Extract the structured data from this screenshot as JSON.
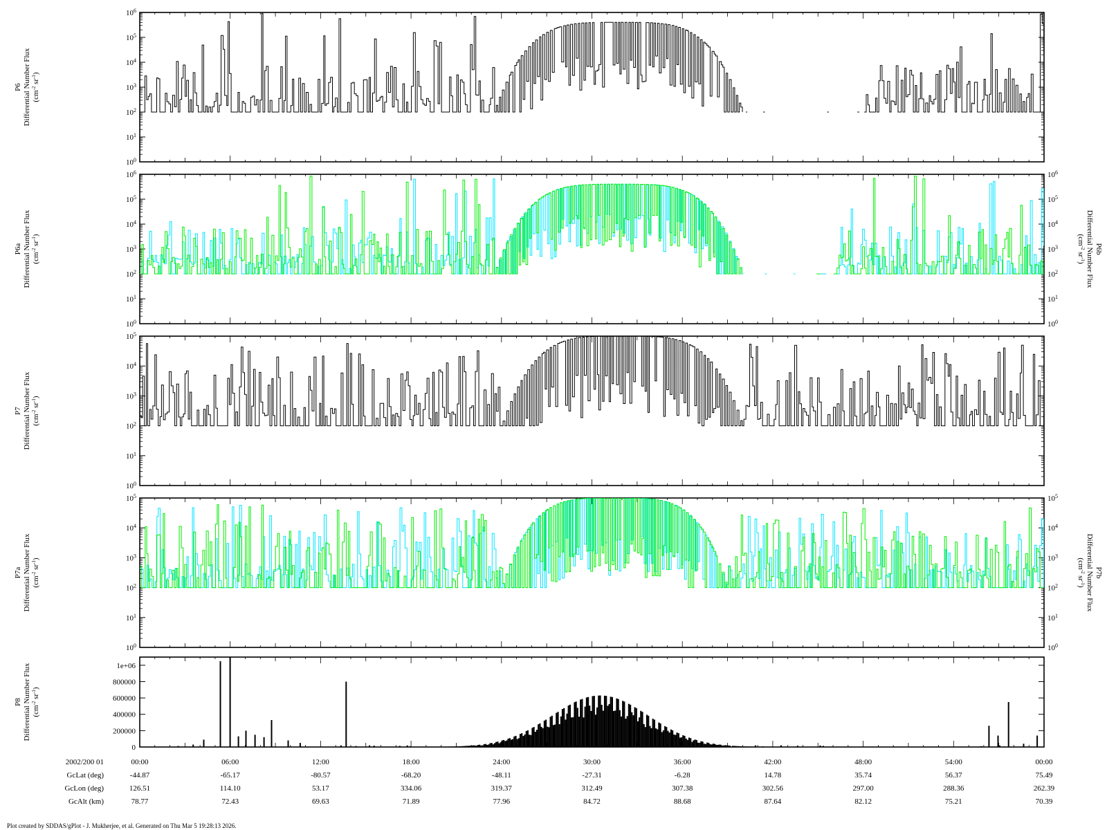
{
  "footer": "Plot created by SDDAS/gPlot - J. Mukherjee, et al.  Generated on Thu Mar 5 19:28:13 2026.",
  "colors": {
    "axis": "#000000",
    "p_black": "#000000",
    "p_cyan": "#00e5ff",
    "p_green": "#00ee00"
  },
  "chart_data": [
    {
      "type": "line",
      "name": "P6",
      "ylabel": [
        "P6",
        "Differential Number Flux",
        "(cm-2 sr-1)"
      ],
      "right_ylabel": "",
      "yscale": "log",
      "ylim": [
        1,
        1000000
      ],
      "yticks": [
        "10^0",
        "10^1",
        "10^2",
        "10^3",
        "10^4",
        "10^5",
        "10^6"
      ],
      "series": [
        {
          "color": "black"
        }
      ],
      "profile": {
        "hump_peak": 400000,
        "hump_start": 23.5,
        "hump_end": 40,
        "gap": [
          40,
          48
        ],
        "max_spike": 1000000
      }
    },
    {
      "type": "line",
      "name": "P6a/P6b",
      "ylabel": [
        "P6a",
        "Differential Number Flux",
        "(cm-2 sr-1)"
      ],
      "right_ylabel": [
        "P6b",
        "Differential Number Flux",
        "(cm-2 sr-1)"
      ],
      "yscale": "log",
      "ylim": [
        1,
        1000000
      ],
      "yticks": [
        "10^0",
        "10^1",
        "10^2",
        "10^3",
        "10^4",
        "10^5",
        "10^6"
      ],
      "series": [
        {
          "color": "cyan"
        },
        {
          "color": "green"
        }
      ],
      "profile": {
        "hump_peak": 400000,
        "hump_start": 23.5,
        "hump_end": 40,
        "gap": [
          40,
          46
        ],
        "max_spike": 1000000
      }
    },
    {
      "type": "line",
      "name": "P7",
      "ylabel": [
        "P7",
        "Differential Number Flux",
        "(cm-2 sr-1)"
      ],
      "right_ylabel": "",
      "yscale": "log",
      "ylim": [
        1,
        100000
      ],
      "yticks": [
        "10^0",
        "10^1",
        "10^2",
        "10^3",
        "10^4",
        "10^5"
      ],
      "series": [
        {
          "color": "black"
        }
      ],
      "profile": {
        "hump_peak": 100000,
        "hump_start": 24,
        "hump_end": 40,
        "gap": null,
        "max_spike": 60000
      }
    },
    {
      "type": "line",
      "name": "P7a/P7b",
      "ylabel": [
        "P7a",
        "Differential Number Flux",
        "(cm-2 sr-1)"
      ],
      "right_ylabel": [
        "P7b",
        "Differential Number Flux",
        "(cm-2 sr-1)"
      ],
      "yscale": "log",
      "ylim": [
        1,
        100000
      ],
      "yticks": [
        "10^0",
        "10^1",
        "10^2",
        "10^3",
        "10^4",
        "10^5"
      ],
      "series": [
        {
          "color": "cyan"
        },
        {
          "color": "green"
        }
      ],
      "profile": {
        "hump_peak": 100000,
        "hump_start": 24,
        "hump_end": 39,
        "gap": null,
        "max_spike": 60000
      }
    },
    {
      "type": "bar",
      "name": "P8",
      "ylabel": [
        "P8",
        "Differential Number Flux",
        "(cm-2 sr-1)"
      ],
      "right_ylabel": "",
      "yscale": "linear",
      "ylim": [
        0,
        1100000
      ],
      "yticks": [
        "0",
        "200000",
        "400000",
        "600000",
        "800000",
        "1e+06"
      ],
      "series": [
        {
          "color": "black"
        }
      ],
      "profile": {
        "hump_peak": 630000,
        "hump_center": 30.5,
        "hump_sigma": 3.2,
        "spikes": [
          [
            3.5,
            30000
          ],
          [
            4.2,
            90000
          ],
          [
            5.3,
            1050000
          ],
          [
            5.95,
            1100000
          ],
          [
            6.5,
            130000
          ],
          [
            7.0,
            200000
          ],
          [
            7.6,
            150000
          ],
          [
            8.2,
            120000
          ],
          [
            8.7,
            330000
          ],
          [
            9.8,
            80000
          ],
          [
            10.6,
            50000
          ],
          [
            13.65,
            800000
          ],
          [
            15.2,
            20000
          ],
          [
            56.3,
            260000
          ],
          [
            56.9,
            140000
          ],
          [
            57.6,
            550000
          ],
          [
            58.6,
            40000
          ],
          [
            59.5,
            140000
          ]
        ]
      }
    }
  ],
  "xaxis": {
    "range_minutes": [
      0,
      60
    ],
    "row_labels": [
      "2002/200 01",
      "GcLat (deg)",
      "GcLon (deg)",
      "GcAlt (km)"
    ],
    "columns": [
      [
        "00:00",
        "-44.87",
        "126.51",
        "78.77"
      ],
      [
        "06:00",
        "-65.17",
        "114.10",
        "72.43"
      ],
      [
        "12:00",
        "-80.57",
        "53.17",
        "69.63"
      ],
      [
        "18:00",
        "-68.20",
        "334.06",
        "71.89"
      ],
      [
        "24:00",
        "-48.11",
        "319.37",
        "77.96"
      ],
      [
        "30:00",
        "-27.31",
        "312.49",
        "84.72"
      ],
      [
        "36:00",
        "-6.28",
        "307.38",
        "88.68"
      ],
      [
        "42:00",
        "14.78",
        "302.56",
        "87.64"
      ],
      [
        "48:00",
        "35.74",
        "297.00",
        "82.12"
      ],
      [
        "54:00",
        "56.37",
        "288.36",
        "75.21"
      ],
      [
        "00:00",
        "75.49",
        "262.39",
        "70.39"
      ]
    ]
  }
}
